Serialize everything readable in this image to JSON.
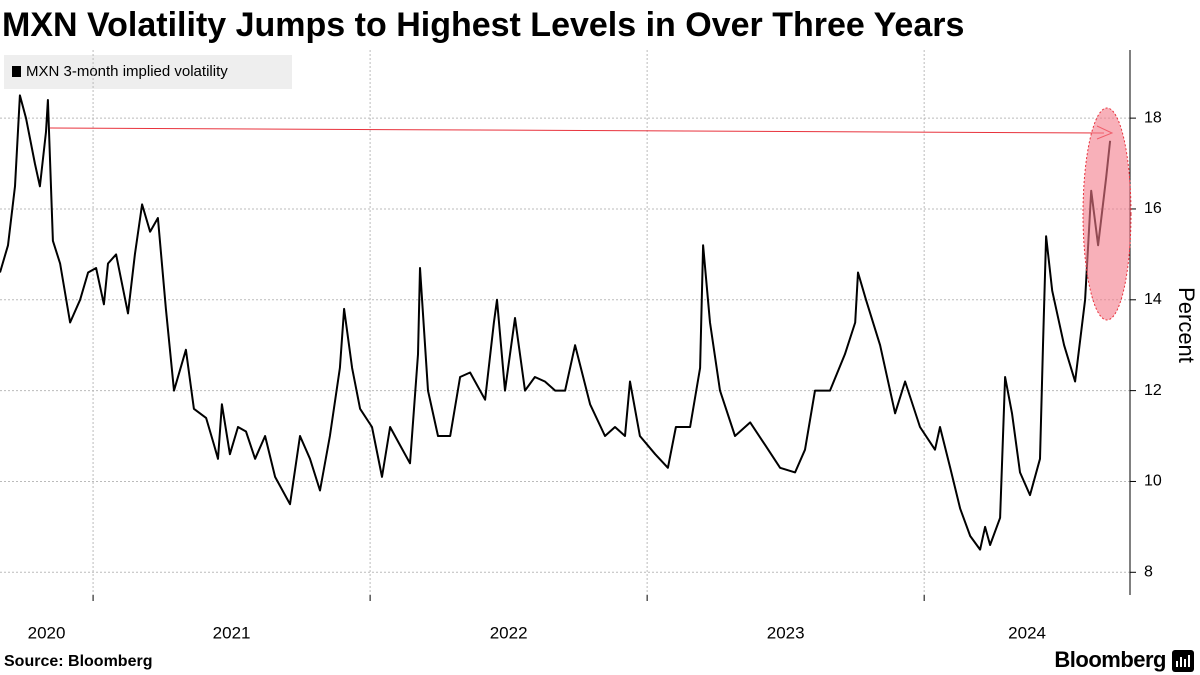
{
  "chart_data": {
    "type": "line",
    "title": "MXN Volatility Jumps to Highest Levels in Over Three Years",
    "source": "Source: Bloomberg",
    "logo": "Bloomberg",
    "y_label": "Percent",
    "x": [
      2020.664,
      2020.693,
      2020.718,
      2020.736,
      2020.758,
      2020.79,
      2020.808,
      2020.83,
      2020.837,
      2020.855,
      2020.881,
      2020.917,
      2020.953,
      2020.982,
      2021.011,
      2021.039,
      2021.054,
      2021.083,
      2021.126,
      2021.151,
      2021.177,
      2021.206,
      2021.234,
      2021.263,
      2021.292,
      2021.335,
      2021.364,
      2021.408,
      2021.437,
      2021.451,
      2021.465,
      2021.494,
      2021.523,
      2021.552,
      2021.585,
      2021.621,
      2021.657,
      2021.711,
      2021.747,
      2021.783,
      2021.819,
      2021.855,
      2021.891,
      2021.906,
      2021.935,
      2021.964,
      2022.007,
      2022.043,
      2022.072,
      2022.108,
      2022.144,
      2022.173,
      2022.18,
      2022.209,
      2022.245,
      2022.289,
      2022.325,
      2022.361,
      2022.415,
      2022.447,
      2022.458,
      2022.487,
      2022.523,
      2022.559,
      2022.595,
      2022.631,
      2022.668,
      2022.704,
      2022.74,
      2022.794,
      2022.848,
      2022.884,
      2022.92,
      2022.938,
      2022.974,
      2023.029,
      2023.075,
      2023.104,
      2023.155,
      2023.191,
      2023.202,
      2023.227,
      2023.263,
      2023.317,
      2023.372,
      2023.426,
      2023.48,
      2023.534,
      2023.57,
      2023.606,
      2023.66,
      2023.714,
      2023.751,
      2023.761,
      2023.79,
      2023.841,
      2023.895,
      2023.931,
      2023.985,
      2024.039,
      2024.057,
      2024.094,
      2024.13,
      2024.166,
      2024.202,
      2024.22,
      2024.238,
      2024.274,
      2024.292,
      2024.317,
      2024.346,
      2024.382,
      2024.418,
      2024.429,
      2024.44,
      2024.462,
      2024.505,
      2024.545,
      2024.581,
      2024.603,
      2024.628,
      2024.657,
      2024.671
    ],
    "series": [
      {
        "name": "MXN 3-month implied volatility",
        "color": "#000000",
        "values": [
          14.6,
          15.2,
          16.5,
          18.5,
          18.0,
          17.0,
          16.5,
          17.7,
          18.4,
          15.3,
          14.8,
          13.5,
          14.0,
          14.6,
          14.7,
          13.9,
          14.8,
          15.0,
          13.7,
          15.0,
          16.1,
          15.5,
          15.8,
          13.8,
          12.0,
          12.9,
          11.6,
          11.4,
          10.8,
          10.5,
          11.7,
          10.6,
          11.2,
          11.1,
          10.5,
          11.0,
          10.1,
          9.5,
          11.0,
          10.5,
          9.8,
          11.0,
          12.5,
          13.8,
          12.5,
          11.6,
          11.2,
          10.1,
          11.2,
          10.8,
          10.4,
          12.8,
          14.7,
          12.0,
          11.0,
          11.0,
          12.3,
          12.4,
          11.8,
          13.5,
          14.0,
          12.0,
          13.6,
          12.0,
          12.3,
          12.2,
          12.0,
          12.0,
          13.0,
          11.7,
          11.0,
          11.2,
          11.0,
          12.2,
          11.0,
          10.6,
          10.3,
          11.2,
          11.2,
          12.5,
          15.2,
          13.5,
          12.0,
          11.0,
          11.3,
          10.8,
          10.3,
          10.2,
          10.7,
          12.0,
          12.0,
          12.8,
          13.5,
          14.6,
          14.0,
          13.0,
          11.5,
          12.2,
          11.2,
          10.7,
          11.2,
          10.3,
          9.4,
          8.8,
          8.5,
          9.0,
          8.6,
          9.2,
          12.3,
          11.5,
          10.2,
          9.7,
          10.5,
          13.0,
          15.4,
          14.2,
          13.0,
          12.2,
          14.0,
          16.4,
          15.2,
          16.7,
          17.5
        ]
      }
    ],
    "xlim": [
      2020.664,
      2024.743
    ],
    "xticks": [
      2020,
      2021,
      2022,
      2023,
      2024
    ],
    "ylim": [
      7.5,
      19.5
    ],
    "yticks": [
      8,
      10,
      12,
      14,
      16,
      18
    ],
    "grid": true,
    "legend": "top-left"
  }
}
